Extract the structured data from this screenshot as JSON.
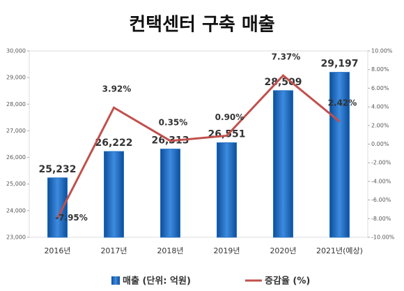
{
  "chart_data": {
    "type": "bar",
    "title": "컨택센터 구축 매출",
    "categories": [
      "2016년",
      "2017년",
      "2018년",
      "2019년",
      "2020년",
      "2021년(예상)"
    ],
    "series": [
      {
        "name": "매출 (단위: 억원)",
        "type": "bar",
        "color": "#1f6fc5",
        "values": [
          25232,
          26222,
          26313,
          26551,
          28509,
          29197
        ],
        "value_labels": [
          "25,232",
          "26,222",
          "26,313",
          "26,551",
          "28,509",
          "29,197"
        ]
      },
      {
        "name": "증감율 (%)",
        "type": "line",
        "axis": "y2",
        "color": "#c0504d",
        "values": [
          -7.95,
          3.92,
          0.35,
          0.9,
          7.37,
          2.42
        ],
        "value_labels": [
          "-7.95%",
          "3.92%",
          "0.35%",
          "0.90%",
          "7.37%",
          "2.42%"
        ]
      }
    ],
    "ylim": [
      23000,
      30000
    ],
    "yticks": [
      {
        "value": 23000,
        "label": "23,000"
      },
      {
        "value": 24000,
        "label": "24,000"
      },
      {
        "value": 25000,
        "label": "25,000"
      },
      {
        "value": 26000,
        "label": "26,000"
      },
      {
        "value": 27000,
        "label": "27,000"
      },
      {
        "value": 28000,
        "label": "28,000"
      },
      {
        "value": 29000,
        "label": "29,000"
      },
      {
        "value": 30000,
        "label": "30,000"
      }
    ],
    "y2lim": [
      -10,
      10
    ],
    "y2ticks": [
      {
        "value": -10,
        "label": "-10.00%"
      },
      {
        "value": -8,
        "label": "-8.00%"
      },
      {
        "value": -6,
        "label": "-6.00%"
      },
      {
        "value": -4,
        "label": "-4.00%"
      },
      {
        "value": -2,
        "label": "-2.00%"
      },
      {
        "value": 0,
        "label": "0.00%"
      },
      {
        "value": 2,
        "label": "2.00%"
      },
      {
        "value": 4,
        "label": "4.00%"
      },
      {
        "value": 6,
        "label": "6.00%"
      },
      {
        "value": 8,
        "label": "8.00%"
      },
      {
        "value": 10,
        "label": "10.00%"
      }
    ],
    "legend": "bottom"
  }
}
